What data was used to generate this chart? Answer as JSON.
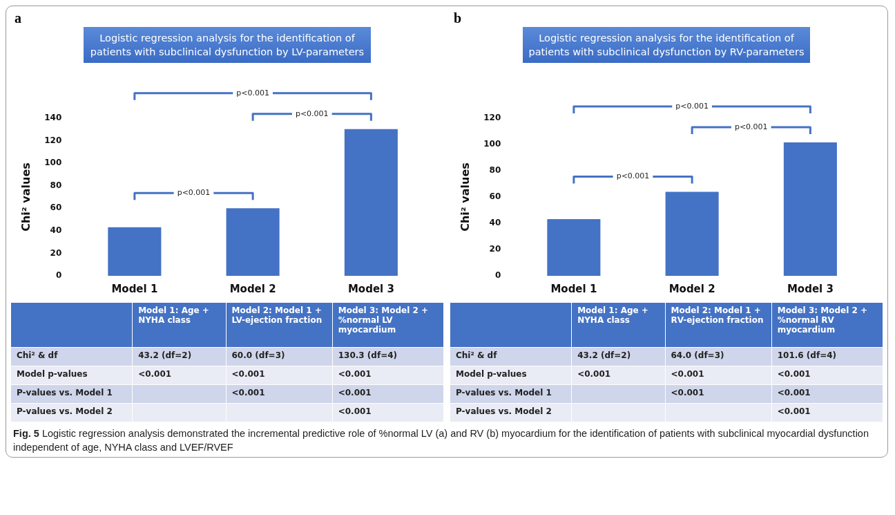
{
  "chart_data": [
    {
      "type": "bar",
      "title": "Logistic regression analysis for the identification of patients with subclinical dysfunction by LV-parameters",
      "ylabel": "Chi² values",
      "categories": [
        "Model 1",
        "Model 2",
        "Model 3"
      ],
      "values": [
        43.2,
        60.0,
        130.3
      ],
      "color": "#4472c4",
      "ylim": [
        0,
        140
      ],
      "yticks": [
        0,
        20,
        40,
        60,
        80,
        100,
        120,
        140
      ],
      "value_labels": [
        "43.2 (df=2)",
        "60.0 (df=3)",
        "130.3 (df=4)"
      ],
      "annotations": [
        "a",
        "p<0.001",
        "p<0.001",
        "p<0.001",
        "Model 1: Age + NYHA class",
        "Model 2: Model 1 + LV-ejection fraction",
        "Model 3: Model 2 + %normal LV myocardium",
        "Chi² & df",
        "Model p-values",
        "<0.001",
        "<0.001",
        "<0.001",
        "P-values vs. Model 1",
        "<0.001",
        "<0.001",
        "P-values vs. Model 2",
        "<0.001"
      ]
    },
    {
      "type": "bar",
      "title": "Logistic regression analysis for the identification of patients with subclinical dysfunction by RV-parameters",
      "ylabel": "Chi² values",
      "categories": [
        "Model 1",
        "Model 2",
        "Model 3"
      ],
      "values": [
        43.2,
        64.0,
        101.6
      ],
      "color": "#4472c4",
      "ylim": [
        0,
        120
      ],
      "yticks": [
        0,
        20,
        40,
        60,
        80,
        100,
        120
      ],
      "value_labels": [
        "43.2 (df=2)",
        "64.0 (df=3)",
        "101.6 (df=4)"
      ],
      "annotations": [
        "b",
        "p<0.001",
        "p<0.001",
        "p<0.001",
        "Model 1: Age + NYHA class",
        "Model 2: Model 1 + RV-ejection fraction",
        "Model 3: Model 2 + %normal RV myocardium",
        "Chi² & df",
        "Model p-values",
        "<0.001",
        "<0.001",
        "<0.001",
        "P-values vs. Model 1",
        "<0.001",
        "<0.001",
        "P-values vs. Model 2",
        "<0.001"
      ]
    },
    {
      "type": "other",
      "annotations": [
        "Fig. 5",
        "Logistic regression analysis demonstrated the incremental predictive role of %normal LV (a) and RV (b) myocardium for the identification of patients with subclinical myocardial dysfunction independent of age, NYHA class and LVEF/RVEF"
      ]
    }
  ]
}
